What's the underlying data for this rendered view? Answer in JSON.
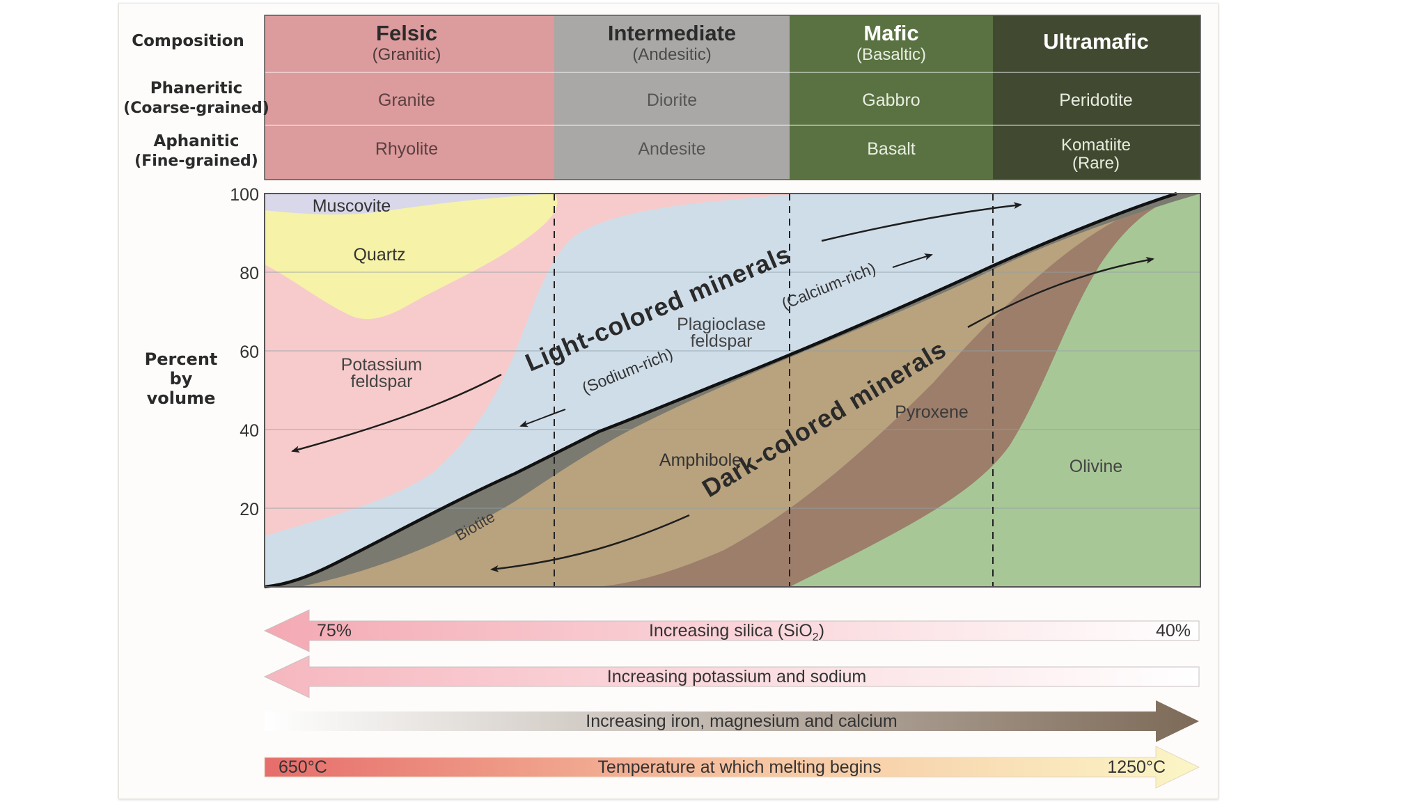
{
  "colors": {
    "felsic": "#dc9b9d",
    "intermediate": "#a9a8a6",
    "mafic": "#5a7242",
    "ultramafic": "#414a30",
    "muscovite": "#d9d7ea",
    "quartz": "#f6f2a8",
    "kfeldspar": "#f7cbcb",
    "plagioclase": "#cfdde9",
    "biotite": "#7a7a70",
    "amphibole": "#b9a27e",
    "pyroxene": "#9c7e6b",
    "olivine": "#a8c797",
    "label_dark": "#333333"
  },
  "header": {
    "row_labels": {
      "composition": "Composition",
      "phaneritic": "Phaneritic",
      "phaneritic_sub": "(Coarse-grained)",
      "aphanitic": "Aphanitic",
      "aphanitic_sub": "(Fine-grained)"
    },
    "columns": [
      {
        "name": "Felsic",
        "sub": "(Granitic)",
        "phaneritic": "Granite",
        "aphanitic": "Rhyolite",
        "aphanitic_sub": ""
      },
      {
        "name": "Intermediate",
        "sub": "(Andesitic)",
        "phaneritic": "Diorite",
        "aphanitic": "Andesite",
        "aphanitic_sub": ""
      },
      {
        "name": "Mafic",
        "sub": "(Basaltic)",
        "phaneritic": "Gabbro",
        "aphanitic": "Basalt",
        "aphanitic_sub": ""
      },
      {
        "name": "Ultramafic",
        "sub": "",
        "phaneritic": "Peridotite",
        "aphanitic": "Komatiite",
        "aphanitic_sub": "(Rare)"
      }
    ]
  },
  "chart": {
    "y_axis_label": [
      "Percent",
      "by",
      "volume"
    ],
    "y_ticks": [
      "100",
      "80",
      "60",
      "40",
      "20"
    ],
    "minerals": {
      "muscovite": "Muscovite",
      "quartz": "Quartz",
      "kfeldspar": [
        "Potassium",
        "feldspar"
      ],
      "plagioclase": [
        "Plagioclase",
        "feldspar"
      ],
      "biotite": "Biotite",
      "amphibole": "Amphibole",
      "pyroxene": "Pyroxene",
      "olivine": "Olivine"
    },
    "annotations": {
      "light": "Light-colored minerals",
      "dark": "Dark-colored minerals",
      "sodium": "(Sodium-rich)",
      "calcium": "(Calcium-rich)"
    }
  },
  "arrows": {
    "silica": {
      "label": "Increasing silica (SiO",
      "sub": "2",
      "close": ")",
      "left": "75%",
      "right": "40%"
    },
    "potassium": {
      "label": "Increasing potassium and sodium"
    },
    "iron": {
      "label": "Increasing iron, magnesium and calcium"
    },
    "temperature": {
      "label": "Temperature at which melting begins",
      "left": "650°C",
      "right": "1250°C"
    }
  }
}
